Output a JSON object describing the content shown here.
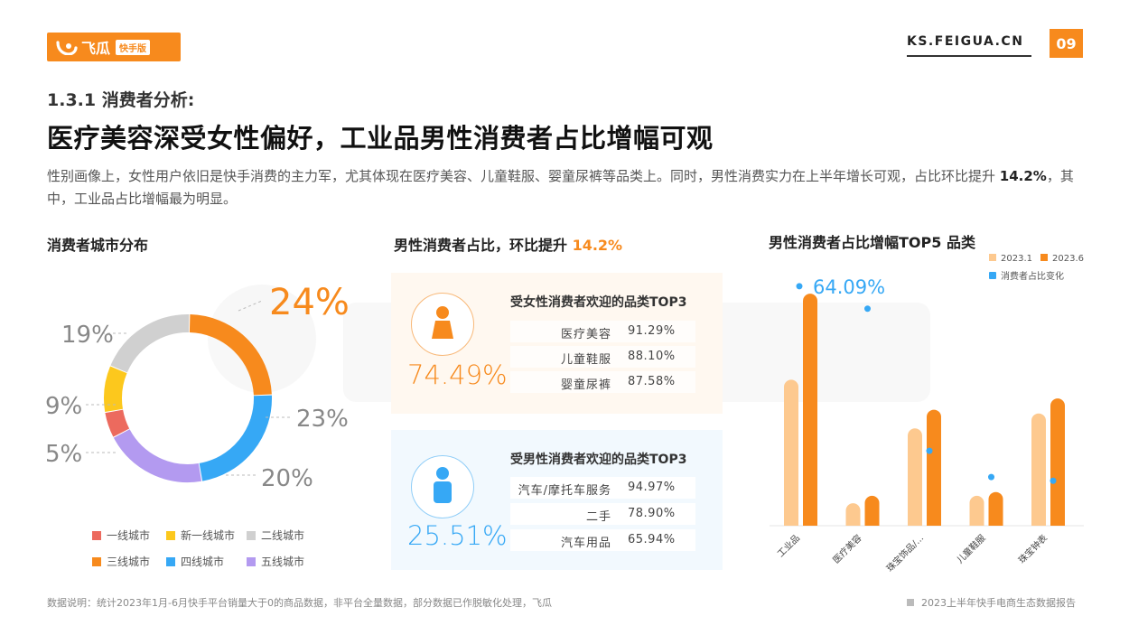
{
  "header": {
    "logo_text": "飞瓜",
    "logo_badge": "快手版",
    "site": "KS.FEIGUA.CN",
    "page_number": "09"
  },
  "section_title": "1.3.1 消费者分析:",
  "headline": "医疗美容深受女性偏好，工业品男性消费者占比增幅可观",
  "description": {
    "part1": "性别画像上，女性用户依旧是快手消费的主力军，尤其体现在医疗美容、儿童鞋服、婴童尿裤等品类上。同时，男性消费实力在上半年增长可观，占比环比提升 ",
    "highlight": "14.2%",
    "part2": "，其中，工业品占比增幅最为明显。"
  },
  "donut": {
    "title": "消费者城市分布",
    "colors": {
      "一线城市": "#ec6a5e",
      "新一线城市": "#fcc81d",
      "二线城市": "#d0d0d0",
      "三线城市": "#f78a1d",
      "四线城市": "#36a8f5",
      "五线城市": "#b39af0"
    },
    "legend": [
      "一线城市",
      "新一线城市",
      "二线城市",
      "三线城市",
      "四线城市",
      "五线城市"
    ],
    "labels": {
      "三线城市": "24%",
      "四线城市": "23%",
      "五线城市": "20%",
      "一线城市": "5%",
      "新一线城市": "9%",
      "二线城市": "19%"
    }
  },
  "gender": {
    "title_prefix": "男性消费者占比，环比提升 ",
    "title_highlight": "14.2%",
    "female": {
      "title": "受女性消费者欢迎的品类TOP3",
      "percent": "74.49%",
      "color": "#f78a1d",
      "rows": [
        {
          "name": "医疗美容",
          "value": "91.29%"
        },
        {
          "name": "儿童鞋服",
          "value": "88.10%"
        },
        {
          "name": "婴童尿裤",
          "value": "87.58%"
        }
      ]
    },
    "male": {
      "title": "受男性消费者欢迎的品类TOP3",
      "percent": "25.51%",
      "color": "#36a8f5",
      "rows": [
        {
          "name": "汽车/摩托车服务",
          "value": "94.97%"
        },
        {
          "name": "二手",
          "value": "78.90%"
        },
        {
          "name": "汽车用品",
          "value": "65.94%"
        }
      ]
    }
  },
  "chart_data": [
    {
      "type": "pie",
      "title": "消费者城市分布",
      "categories": [
        "三线城市",
        "四线城市",
        "五线城市",
        "一线城市",
        "新一线城市",
        "二线城市"
      ],
      "values": [
        24,
        23,
        20,
        5,
        9,
        19
      ]
    },
    {
      "type": "bar",
      "title": "男性消费者占比增幅TOP5 品类",
      "categories": [
        "工业品",
        "医疗美容",
        "珠宝饰品/...",
        "儿童鞋服",
        "珠宝钟表"
      ],
      "series": [
        {
          "name": "2023.1",
          "color": "#fdc98f",
          "values": [
            0.39,
            0.06,
            0.26,
            0.08,
            0.3
          ]
        },
        {
          "name": "2023.6",
          "color": "#f78a1d",
          "values": [
            0.62,
            0.08,
            0.31,
            0.09,
            0.34
          ]
        },
        {
          "name": "消费者占比变化",
          "color": "#36a8f5",
          "type": "scatter",
          "values": [
            0.64,
            0.58,
            0.2,
            0.13,
            0.12
          ]
        }
      ],
      "annotation": "64.09%",
      "ylim": [
        0,
        0.7
      ],
      "legend": "top-right"
    }
  ],
  "footer": {
    "note": "数据说明：统计2023年1月-6月快手平台销量大于0的商品数据，非平台全量数据，部分数据已作脱敏化处理，飞瓜",
    "report": "2023上半年快手电商生态数据报告"
  }
}
